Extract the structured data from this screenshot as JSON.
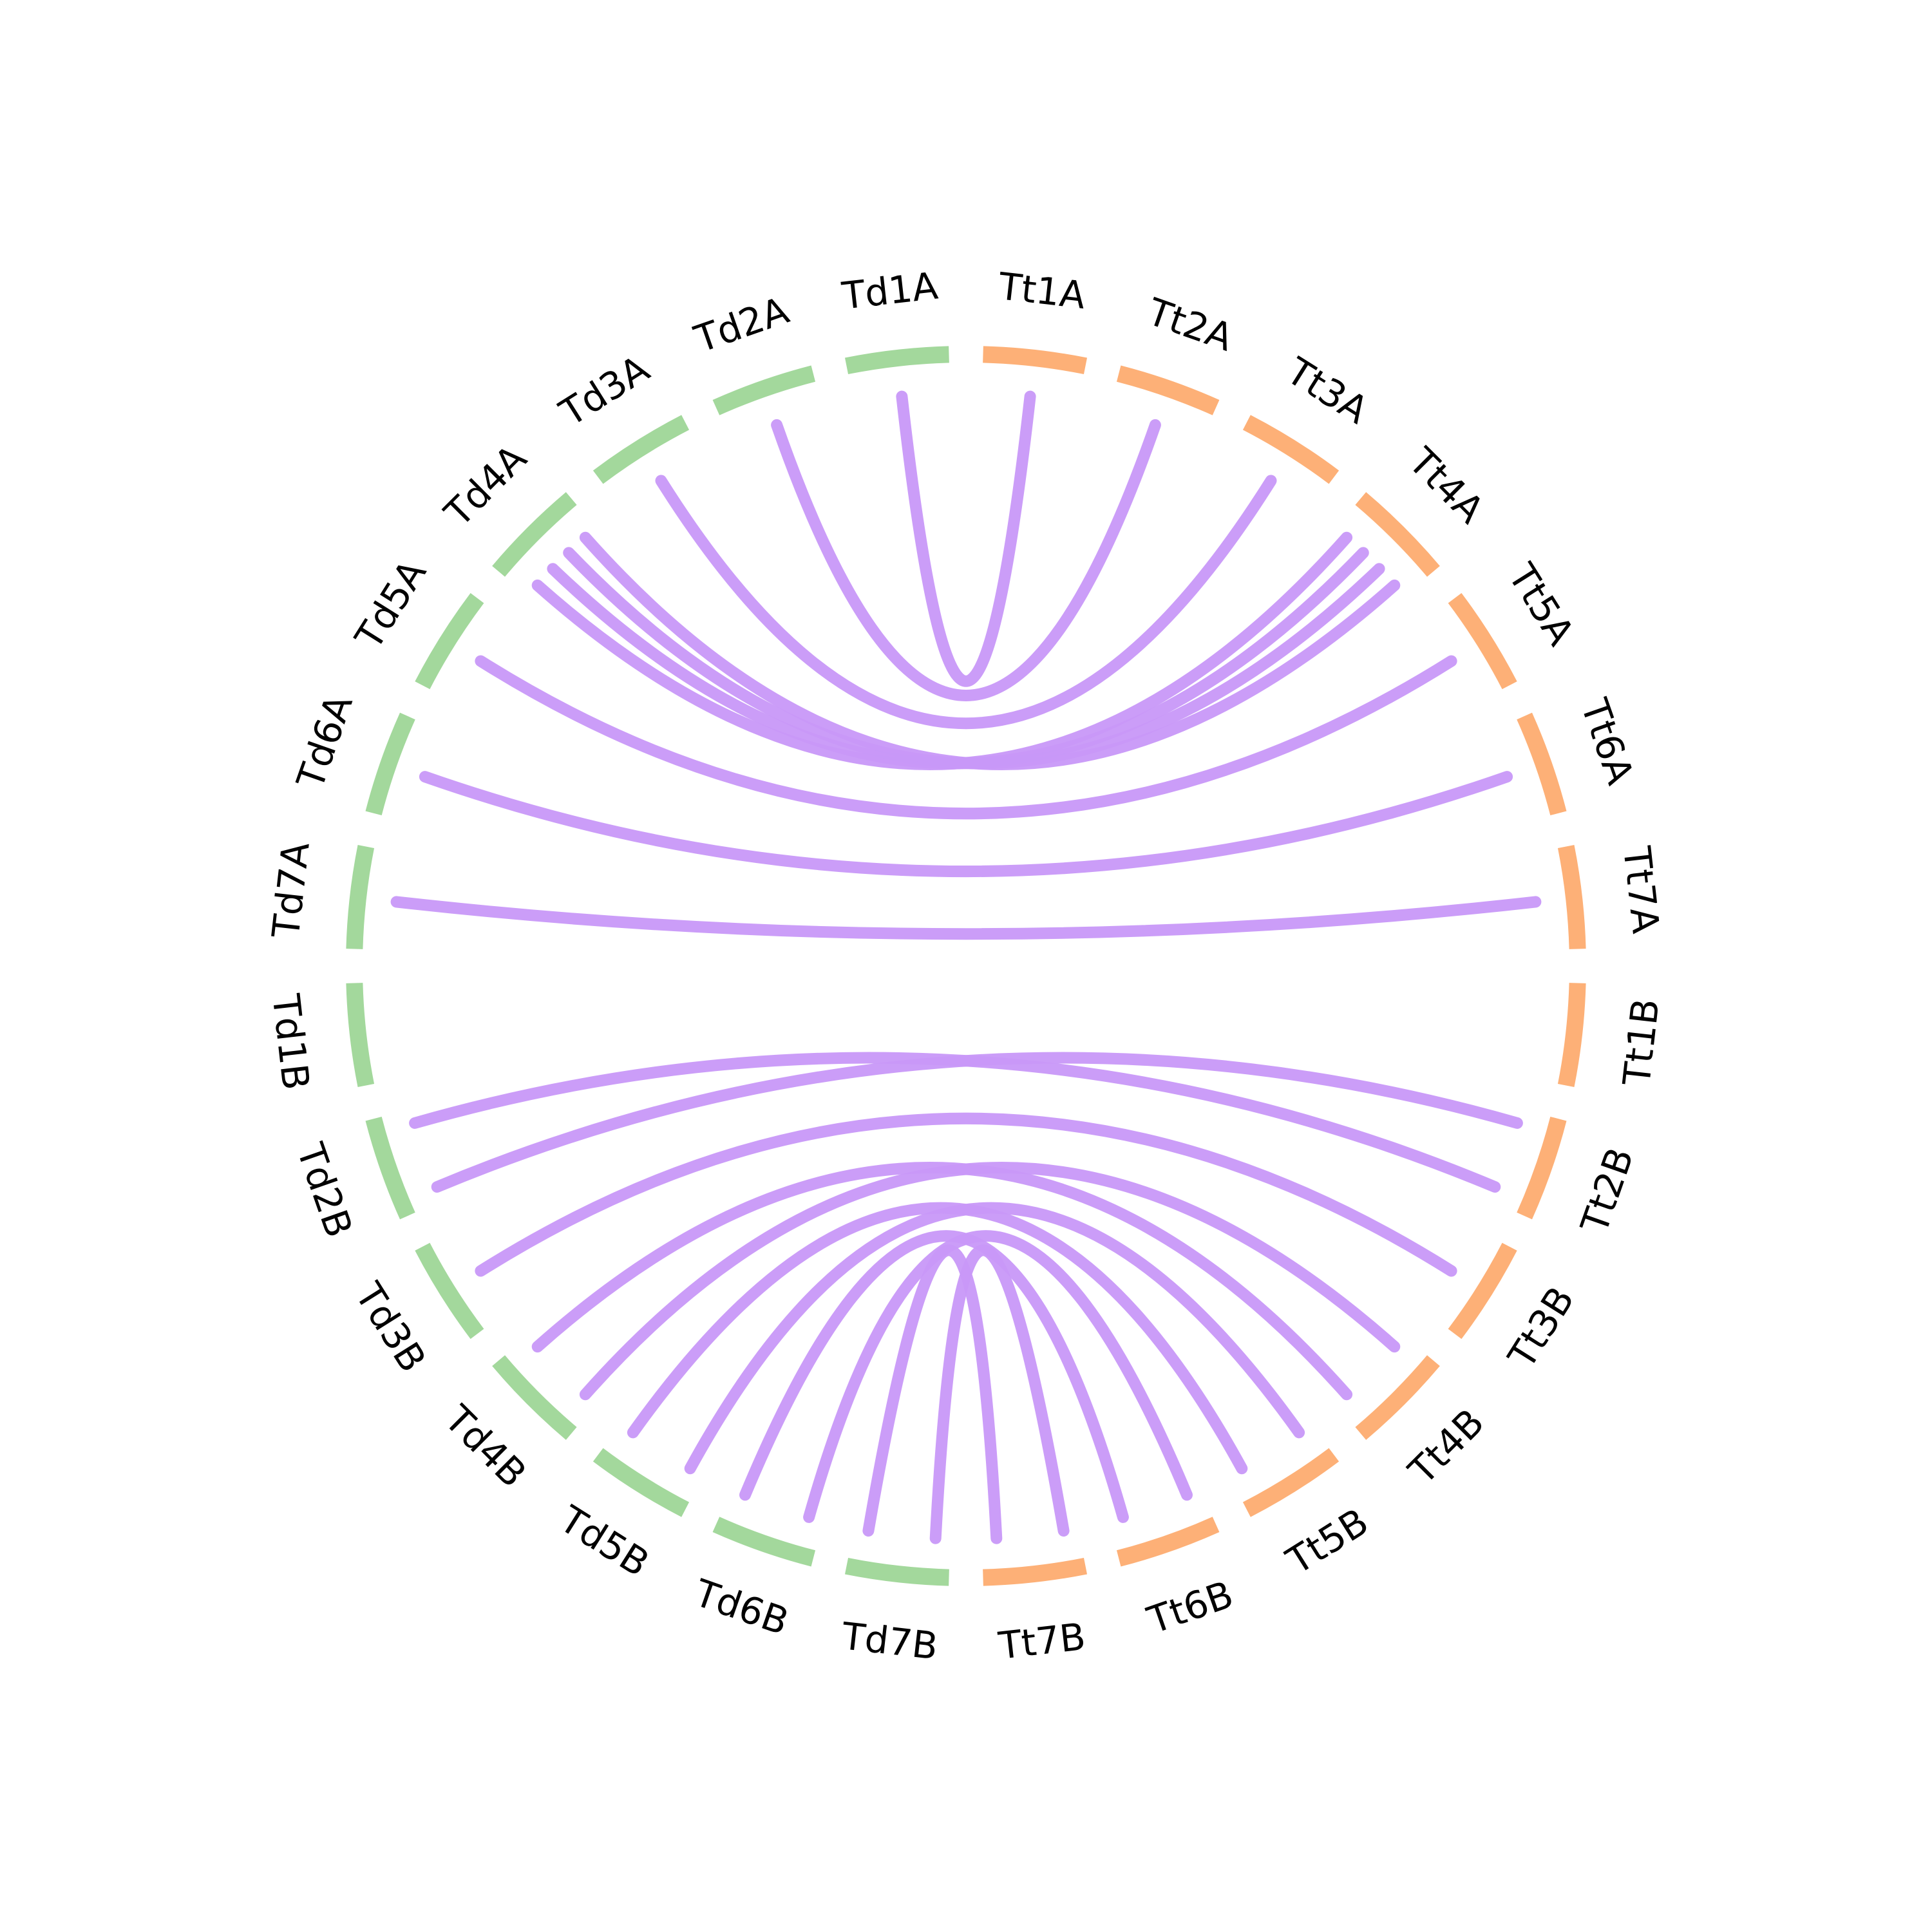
{
  "chart_data": {
    "type": "chord",
    "colors": {
      "Td": "#a3d89c",
      "Tt": "#fdb077",
      "link": "#c898f8"
    },
    "segments": [
      {
        "label": "Tt1A",
        "group": "Tt"
      },
      {
        "label": "Tt2A",
        "group": "Tt"
      },
      {
        "label": "Tt3A",
        "group": "Tt"
      },
      {
        "label": "Tt4A",
        "group": "Tt"
      },
      {
        "label": "Tt5A",
        "group": "Tt"
      },
      {
        "label": "Tt6A",
        "group": "Tt"
      },
      {
        "label": "Tt7A",
        "group": "Tt"
      },
      {
        "label": "Tt1B",
        "group": "Tt"
      },
      {
        "label": "Tt2B",
        "group": "Tt"
      },
      {
        "label": "Tt3B",
        "group": "Tt"
      },
      {
        "label": "Tt4B",
        "group": "Tt"
      },
      {
        "label": "Tt5B",
        "group": "Tt"
      },
      {
        "label": "Tt6B",
        "group": "Tt"
      },
      {
        "label": "Tt7B",
        "group": "Tt"
      },
      {
        "label": "Td7B",
        "group": "Td"
      },
      {
        "label": "Td6B",
        "group": "Td"
      },
      {
        "label": "Td5B",
        "group": "Td"
      },
      {
        "label": "Td4B",
        "group": "Td"
      },
      {
        "label": "Td3B",
        "group": "Td"
      },
      {
        "label": "Td2B",
        "group": "Td"
      },
      {
        "label": "Td1B",
        "group": "Td"
      },
      {
        "label": "Td7A",
        "group": "Td"
      },
      {
        "label": "Td6A",
        "group": "Td"
      },
      {
        "label": "Td5A",
        "group": "Td"
      },
      {
        "label": "Td4A",
        "group": "Td"
      },
      {
        "label": "Td3A",
        "group": "Td"
      },
      {
        "label": "Td2A",
        "group": "Td"
      },
      {
        "label": "Td1A",
        "group": "Td"
      }
    ],
    "links": [
      {
        "source": "Td1A",
        "target": "Tt1A"
      },
      {
        "source": "Td2A",
        "target": "Tt2A"
      },
      {
        "source": "Td3A",
        "target": "Tt3A"
      },
      {
        "source": "Td4A",
        "target": "Tt4A"
      },
      {
        "source": "Td4A",
        "target": "Tt4A"
      },
      {
        "source": "Td4A",
        "target": "Tt4A"
      },
      {
        "source": "Td4A",
        "target": "Tt4A"
      },
      {
        "source": "Td5A",
        "target": "Tt5A"
      },
      {
        "source": "Td6A",
        "target": "Tt6A"
      },
      {
        "source": "Td7A",
        "target": "Tt7A"
      },
      {
        "source": "Td2B",
        "target": "Tt2B"
      },
      {
        "source": "Td2B",
        "target": "Tt2B"
      },
      {
        "source": "Td3B",
        "target": "Tt3B"
      },
      {
        "source": "Td4B",
        "target": "Tt4B"
      },
      {
        "source": "Td4B",
        "target": "Tt4B"
      },
      {
        "source": "Td5B",
        "target": "Tt5B"
      },
      {
        "source": "Td5B",
        "target": "Tt5B"
      },
      {
        "source": "Td6B",
        "target": "Tt6B"
      },
      {
        "source": "Td6B",
        "target": "Tt6B"
      },
      {
        "source": "Td7B",
        "target": "Tt7B"
      },
      {
        "source": "Td7B",
        "target": "Tt7B"
      }
    ]
  }
}
